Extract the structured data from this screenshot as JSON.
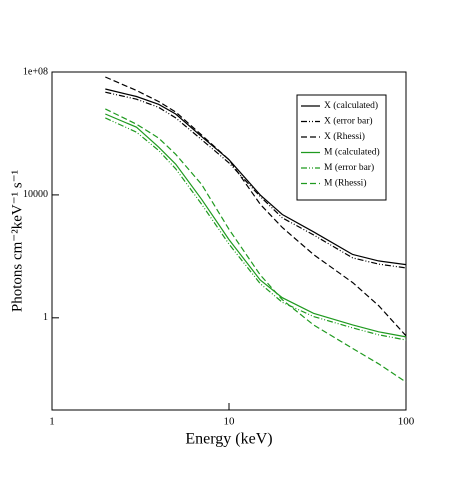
{
  "chart_data": {
    "type": "line",
    "x_label": "Energy (keV)",
    "y_label": "Photons  cm⁻²keV⁻¹ s⁻¹",
    "log_x": true,
    "log_y": true,
    "xlim": [
      1,
      100
    ],
    "xticks": [
      1,
      10,
      100
    ],
    "ylim": [
      0.001,
      100000000
    ],
    "yticks": [
      1,
      10000,
      {
        "value": 100000000,
        "label": "1e+08"
      }
    ],
    "legend": "upper right",
    "x": [
      2,
      3,
      4,
      5,
      7,
      10,
      15,
      20,
      30,
      50,
      70,
      100
    ],
    "series": [
      {
        "name": "X (calculated)",
        "color": "#000000",
        "style": "solid",
        "values": [
          28000000,
          16000000,
          8900000,
          4300000,
          790000,
          140000,
          10000,
          2300,
          630,
          115,
          71,
          54
        ]
      },
      {
        "name": "X (error bar)",
        "color": "#000000",
        "style": "dashdot",
        "values": [
          22000000,
          13000000,
          7100000,
          3200000,
          630000,
          110000,
          8900,
          1800,
          500,
          89,
          56,
          42
        ]
      },
      {
        "name": "X (Rhessi)",
        "color": "#000000",
        "style": "dashed",
        "values": [
          69000000,
          25000000,
          11000000,
          5000000,
          890000,
          140000,
          5000,
          870,
          115,
          14,
          2.5,
          0.26
        ]
      },
      {
        "name": "M (calculated)",
        "color": "#1f9a1f",
        "style": "solid",
        "values": [
          4300000,
          1600000,
          360000,
          100000,
          7200,
          350,
          17,
          4.5,
          1.4,
          0.59,
          0.35,
          0.24
        ]
      },
      {
        "name": "M (error bar)",
        "color": "#1f9a1f",
        "style": "dashdot",
        "values": [
          3200000,
          1100000,
          280000,
          71000,
          5000,
          250,
          13,
          3.2,
          1.1,
          0.47,
          0.28,
          0.19
        ]
      },
      {
        "name": "M (Rhessi)",
        "color": "#1f9a1f",
        "style": "dashed",
        "values": [
          6300000,
          2000000,
          710000,
          210000,
          22000,
          760,
          25,
          3.9,
          0.59,
          0.1,
          0.032,
          0.0081
        ]
      }
    ]
  }
}
